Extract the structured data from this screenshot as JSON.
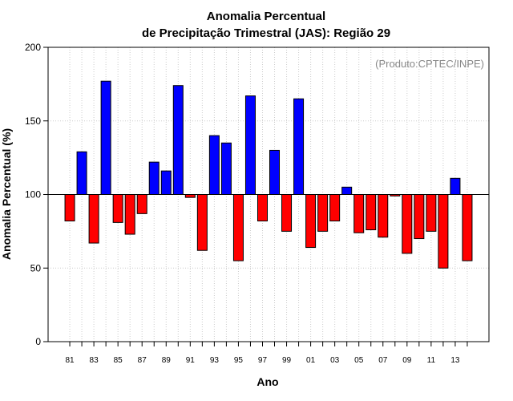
{
  "chart_data": {
    "type": "bar",
    "title_line1": "Anomalia Percentual",
    "title_line2": "de Precipitação Trimestral (JAS): Região 29",
    "xlabel": "Ano",
    "ylabel": "Anomalia Percentual (%)",
    "annotation": "(Produto:CPTEC/INPE)",
    "baseline": 100,
    "ylim": [
      0,
      200
    ],
    "yticks": [
      0,
      50,
      100,
      150,
      200
    ],
    "xlim": [
      1979.2,
      2015.8
    ],
    "grid": true,
    "colors": {
      "above": "#0000ff",
      "below": "#ff0000",
      "grid": "#cccccc",
      "text": "#000000"
    },
    "years": [
      1981,
      1982,
      1983,
      1984,
      1985,
      1986,
      1987,
      1988,
      1989,
      1990,
      1991,
      1992,
      1993,
      1994,
      1995,
      1996,
      1997,
      1998,
      1999,
      2000,
      2001,
      2002,
      2003,
      2004,
      2005,
      2006,
      2007,
      2008,
      2009,
      2010,
      2011,
      2012,
      2013,
      2014
    ],
    "values": [
      82,
      129,
      67,
      177,
      81,
      73,
      87,
      122,
      116,
      174,
      98,
      62,
      140,
      135,
      55,
      167,
      82,
      130,
      75,
      165,
      64,
      75,
      82,
      105,
      74,
      76,
      71,
      99,
      60,
      70,
      75,
      50,
      111,
      55
    ],
    "xtick_labels": [
      "81",
      "83",
      "85",
      "87",
      "89",
      "91",
      "93",
      "95",
      "97",
      "99",
      "01",
      "03",
      "05",
      "07",
      "09",
      "11",
      "13"
    ]
  }
}
